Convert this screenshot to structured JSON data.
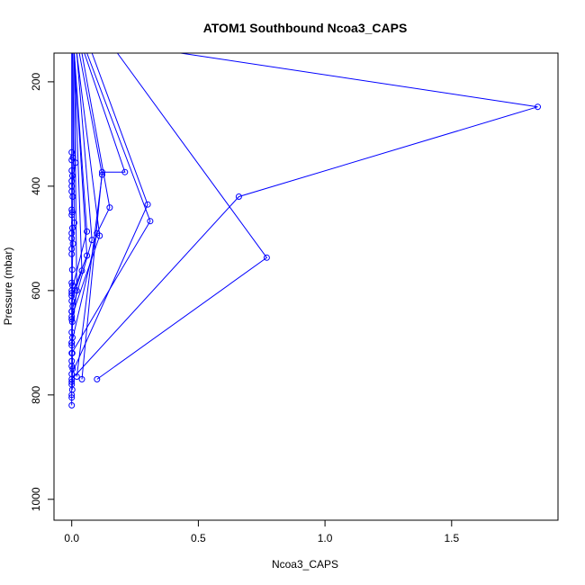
{
  "chart_data": {
    "type": "line",
    "title": "ATOM1 Southbound Ncoa3_CAPS",
    "xlabel": "Ncoa3_CAPS",
    "ylabel": "Pressure (mbar)",
    "xlim": [
      -0.07,
      1.92
    ],
    "ylim": [
      1040,
      145
    ],
    "y_reversed": true,
    "x_ticks": [
      0.0,
      0.5,
      1.0,
      1.5
    ],
    "x_tick_labels": [
      "0.0",
      "0.5",
      "1.0",
      "1.5"
    ],
    "y_ticks": [
      200,
      400,
      600,
      800,
      1000
    ],
    "y_tick_labels": [
      "200",
      "400",
      "600",
      "800",
      "1000"
    ],
    "grid": false,
    "legend": "none",
    "colors": {
      "series": "#0000ff",
      "axis": "#000000",
      "background": "#ffffff"
    },
    "series": [
      {
        "points": [
          [
            0.43,
            145
          ],
          [
            1.84,
            248
          ],
          [
            0.66,
            420
          ],
          [
            0.0,
            770
          ]
        ]
      },
      {
        "points": [
          [
            0.18,
            145
          ],
          [
            0.77,
            537
          ],
          [
            0.1,
            770
          ]
        ]
      },
      {
        "points": [
          [
            0.08,
            145
          ],
          [
            0.3,
            435
          ],
          [
            0.0,
            760
          ]
        ]
      },
      {
        "points": [
          [
            0.06,
            145
          ],
          [
            0.31,
            467
          ],
          [
            0.0,
            720
          ]
        ]
      },
      {
        "points": [
          [
            0.05,
            145
          ],
          [
            0.21,
            373
          ],
          [
            0.12,
            373
          ],
          [
            0.04,
            770
          ]
        ]
      },
      {
        "points": [
          [
            0.03,
            145
          ],
          [
            0.12,
            378
          ],
          [
            0.02,
            765
          ]
        ]
      },
      {
        "points": [
          [
            0.04,
            145
          ],
          [
            0.15,
            441
          ],
          [
            0.1,
            490
          ],
          [
            0.0,
            700
          ]
        ]
      },
      {
        "points": [
          [
            0.02,
            145
          ],
          [
            0.11,
            495
          ],
          [
            0.0,
            650
          ]
        ]
      },
      {
        "points": [
          [
            0.02,
            145
          ],
          [
            0.08,
            503
          ],
          [
            0.0,
            640
          ]
        ]
      },
      {
        "points": [
          [
            0.01,
            145
          ],
          [
            0.06,
            487
          ],
          [
            0.0,
            600
          ]
        ]
      },
      {
        "points": [
          [
            0.01,
            145
          ],
          [
            0.06,
            533
          ],
          [
            0.0,
            610
          ]
        ]
      },
      {
        "points": [
          [
            0.01,
            145
          ],
          [
            0.04,
            562
          ],
          [
            0.0,
            620
          ]
        ]
      },
      {
        "points": [
          [
            0.01,
            145
          ],
          [
            0.02,
            600
          ],
          [
            0.0,
            680
          ]
        ]
      },
      {
        "points": [
          [
            0.01,
            145
          ],
          [
            0.015,
            355
          ],
          [
            0.0,
            400
          ]
        ]
      },
      {
        "points": [
          [
            0.005,
            145
          ],
          [
            0.01,
            470
          ],
          [
            0.0,
            520
          ]
        ]
      },
      {
        "points": [
          [
            0.0,
            145
          ],
          [
            0.0,
            335
          ],
          [
            0.0,
            350
          ],
          [
            0.0,
            370
          ],
          [
            0.0,
            390
          ],
          [
            0.0,
            410
          ],
          [
            0.0,
            445
          ],
          [
            0.0,
            455
          ],
          [
            0.0,
            490
          ],
          [
            0.0,
            500
          ],
          [
            0.0,
            530
          ],
          [
            0.0,
            585
          ],
          [
            0.0,
            605
          ],
          [
            0.0,
            640
          ],
          [
            0.0,
            655
          ],
          [
            0.0,
            700
          ],
          [
            0.0,
            705
          ],
          [
            0.0,
            735
          ],
          [
            0.0,
            745
          ],
          [
            0.0,
            775
          ],
          [
            0.0,
            780
          ],
          [
            0.0,
            800
          ],
          [
            0.0,
            805
          ],
          [
            0.0,
            820
          ]
        ]
      },
      {
        "points": [
          [
            0.003,
            145
          ],
          [
            0.005,
            345
          ],
          [
            0.003,
            380
          ],
          [
            0.004,
            420
          ],
          [
            0.002,
            450
          ],
          [
            0.003,
            480
          ],
          [
            0.005,
            510
          ],
          [
            0.002,
            560
          ],
          [
            0.003,
            590
          ],
          [
            0.004,
            630
          ],
          [
            0.002,
            660
          ],
          [
            0.003,
            690
          ],
          [
            0.002,
            720
          ],
          [
            0.004,
            750
          ],
          [
            0.002,
            790
          ]
        ]
      }
    ]
  }
}
